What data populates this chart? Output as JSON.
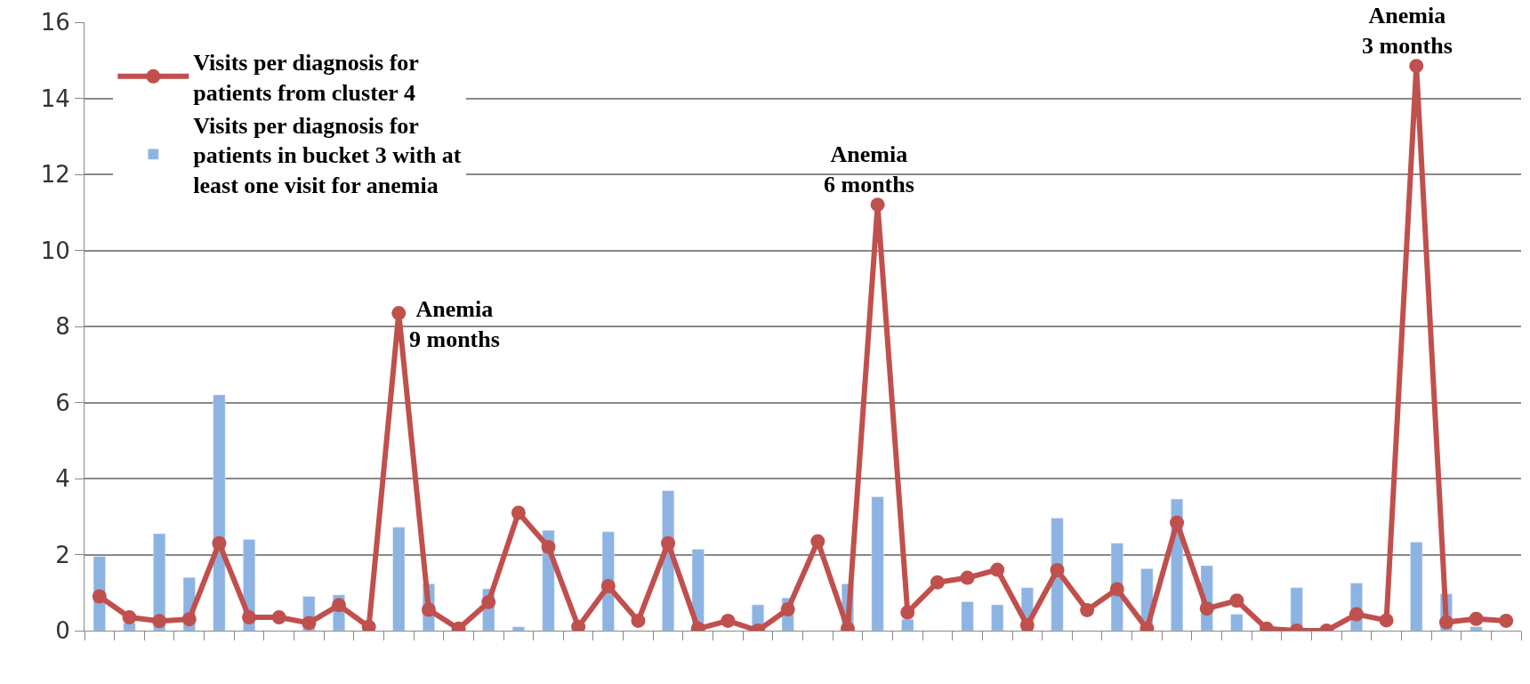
{
  "chart_data": {
    "type": "bar",
    "categories": [
      null,
      null,
      null,
      null,
      null,
      null,
      null,
      null,
      null,
      null,
      null,
      null,
      null,
      null,
      null,
      null,
      null,
      null,
      null,
      null,
      null,
      null,
      null,
      null,
      null,
      null,
      null,
      null,
      null,
      null,
      null,
      null,
      null,
      null,
      null,
      null,
      null,
      null,
      null,
      null,
      null,
      null,
      null,
      null,
      null,
      null,
      null,
      null
    ],
    "series": [
      {
        "name": "Visits per diagnosis for\npatients in bucket 3 with at\nleast one visit for anemia",
        "color": "#8db3e2",
        "values": [
          1.95,
          0.2,
          2.55,
          1.4,
          6.2,
          2.4,
          null,
          0.9,
          0.94,
          null,
          2.72,
          1.23,
          null,
          1.1,
          0.1,
          2.64,
          null,
          2.6,
          null,
          3.68,
          2.14,
          null,
          0.68,
          0.86,
          null,
          1.23,
          3.52,
          0.3,
          null,
          0.76,
          0.68,
          1.13,
          2.96,
          null,
          2.3,
          1.63,
          3.46,
          1.71,
          0.43,
          null,
          1.13,
          null,
          1.25,
          null,
          2.33,
          0.97,
          0.1,
          null
        ]
      },
      {
        "name": "Visits per diagnosis for\npatients from cluster 4",
        "type": "line",
        "color": "#c0504d",
        "marker": "circle",
        "values": [
          0.9,
          0.35,
          0.25,
          0.3,
          2.3,
          0.35,
          0.35,
          0.2,
          0.67,
          0.1,
          8.35,
          0.55,
          0.05,
          0.75,
          3.1,
          2.2,
          0.1,
          1.17,
          0.26,
          2.3,
          0.05,
          0.26,
          0.0,
          0.56,
          2.35,
          0.05,
          11.2,
          0.48,
          1.27,
          1.39,
          1.6,
          0.14,
          1.59,
          0.54,
          1.09,
          0.05,
          2.84,
          0.58,
          0.79,
          0.05,
          0.0,
          0.0,
          0.43,
          0.27,
          14.85,
          0.22,
          0.31,
          0.26
        ]
      }
    ],
    "annotations": [
      "Anemia\n9 months",
      "Anemia\n6 months",
      "Anemia\n3 months"
    ],
    "ylim": [
      0,
      16
    ],
    "yticks": [
      0,
      2,
      4,
      6,
      8,
      10,
      12,
      14,
      16
    ],
    "grid": "y",
    "legend": "top left"
  }
}
